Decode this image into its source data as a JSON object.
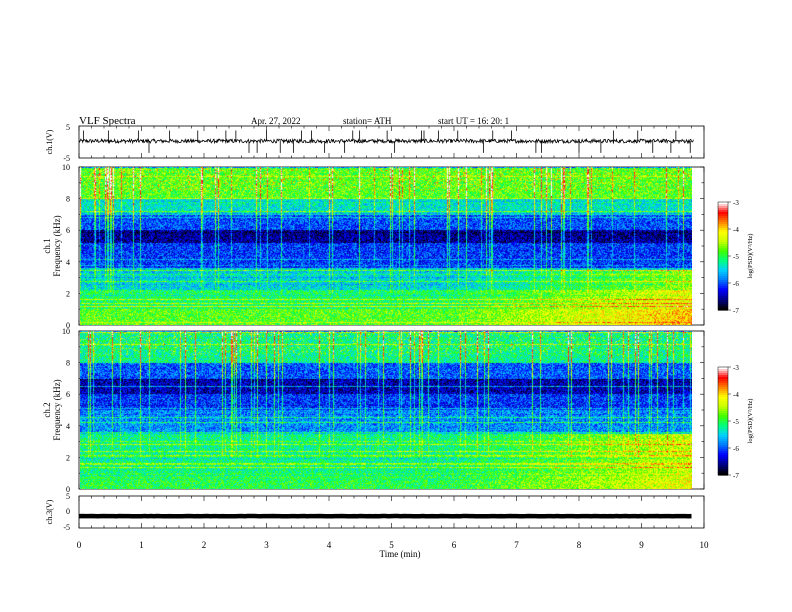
{
  "header": {
    "title": "VLF  Spectra",
    "date": "Apr. 27, 2022",
    "station": "station= ATH",
    "start_ut": "start  UT  =    16: 20: 1"
  },
  "chart_data": [
    {
      "type": "line",
      "name": "ch1-waveform",
      "ylabel": "ch.1(V)",
      "ylim": [
        -5,
        5
      ],
      "yticks": [
        "5",
        "-5"
      ],
      "xlim": [
        0,
        10
      ],
      "baseline": 0.3,
      "noise_amplitude": 0.6,
      "spike_times": [
        0.07,
        0.47,
        0.95,
        1.12,
        1.45,
        1.9,
        2.35,
        2.51,
        2.72,
        2.85,
        3.0,
        3.22,
        3.43,
        3.56,
        3.72,
        3.93,
        4.25,
        4.38,
        4.49,
        4.93,
        5.05,
        5.48,
        5.52,
        5.75,
        6.06,
        6.47,
        6.62,
        6.92,
        7.31,
        7.4,
        8.0,
        8.35,
        8.55,
        8.94,
        9.18,
        9.47,
        9.55,
        9.78
      ]
    },
    {
      "type": "heatmap",
      "name": "ch1-spectrogram",
      "ylabel": "Frequency  (kHz)",
      "channel_label": "ch.1",
      "ylim": [
        0,
        10
      ],
      "yticks": [
        "0",
        "2",
        "4",
        "6",
        "8",
        "10"
      ],
      "xlim": [
        0,
        9.83
      ],
      "colorbar": {
        "label": "log(PSD)(V²/Hz)",
        "ticks": [
          "-3",
          "-4",
          "-5",
          "-6",
          "-7"
        ],
        "range": [
          -7,
          -3
        ]
      },
      "colormap": [
        "#000000",
        "#00008b",
        "#0000ff",
        "#0078ff",
        "#00d0ff",
        "#00ff80",
        "#40ff00",
        "#c8ff00",
        "#ffff00",
        "#ff8000",
        "#ff0000",
        "#ffffff"
      ],
      "bands": [
        {
          "from": 0,
          "to": 1.0,
          "level": 0.55
        },
        {
          "from": 1.0,
          "to": 2.2,
          "level": 0.48
        },
        {
          "from": 2.2,
          "to": 3.6,
          "level": 0.38
        },
        {
          "from": 3.6,
          "to": 5.2,
          "level": 0.22
        },
        {
          "from": 5.2,
          "to": 6.0,
          "level": 0.1
        },
        {
          "from": 6.0,
          "to": 7.0,
          "level": 0.24
        },
        {
          "from": 7.0,
          "to": 8.0,
          "level": 0.4
        },
        {
          "from": 8.0,
          "to": 10.0,
          "level": 0.55
        }
      ],
      "late_lowfreq_boost": 0.22
    },
    {
      "type": "heatmap",
      "name": "ch2-spectrogram",
      "ylabel": "Frequency  (kHz)",
      "channel_label": "ch.2",
      "ylim": [
        0,
        10
      ],
      "yticks": [
        "0",
        "2",
        "4",
        "6",
        "8",
        "10"
      ],
      "xlim": [
        0,
        9.83
      ],
      "colorbar": {
        "label": "log(PSD)(V²/Hz)",
        "ticks": [
          "-3",
          "-4",
          "-5",
          "-6",
          "-7"
        ],
        "range": [
          -7,
          -3
        ]
      },
      "colormap": [
        "#000000",
        "#00008b",
        "#0000ff",
        "#0078ff",
        "#00d0ff",
        "#00ff80",
        "#40ff00",
        "#c8ff00",
        "#ffff00",
        "#ff8000",
        "#ff0000",
        "#ffffff"
      ],
      "bands": [
        {
          "from": 0,
          "to": 1.0,
          "level": 0.5
        },
        {
          "from": 1.0,
          "to": 2.4,
          "level": 0.45
        },
        {
          "from": 2.4,
          "to": 3.6,
          "level": 0.45
        },
        {
          "from": 3.6,
          "to": 5.0,
          "level": 0.3
        },
        {
          "from": 5.0,
          "to": 6.0,
          "level": 0.22
        },
        {
          "from": 6.0,
          "to": 7.0,
          "level": 0.12
        },
        {
          "from": 7.0,
          "to": 8.0,
          "level": 0.25
        },
        {
          "from": 8.0,
          "to": 10.0,
          "level": 0.45
        }
      ],
      "late_lowfreq_boost": 0.2
    },
    {
      "type": "line",
      "name": "ch3-waveform",
      "ylabel": "ch.3(V)",
      "ylim": [
        -5,
        5
      ],
      "yticks": [
        "5",
        "0",
        "-5"
      ],
      "xlim": [
        0,
        10
      ],
      "baseline": -1.3,
      "noise_amplitude": 0.3
    }
  ],
  "x_axis": {
    "xlabel": "Time  (min)",
    "xlim": [
      0,
      10
    ],
    "ticks": [
      "0",
      "1",
      "2",
      "3",
      "4",
      "5",
      "6",
      "7",
      "8",
      "9",
      "10"
    ]
  },
  "colors": {
    "trace": "#000000",
    "axis": "#000000"
  }
}
